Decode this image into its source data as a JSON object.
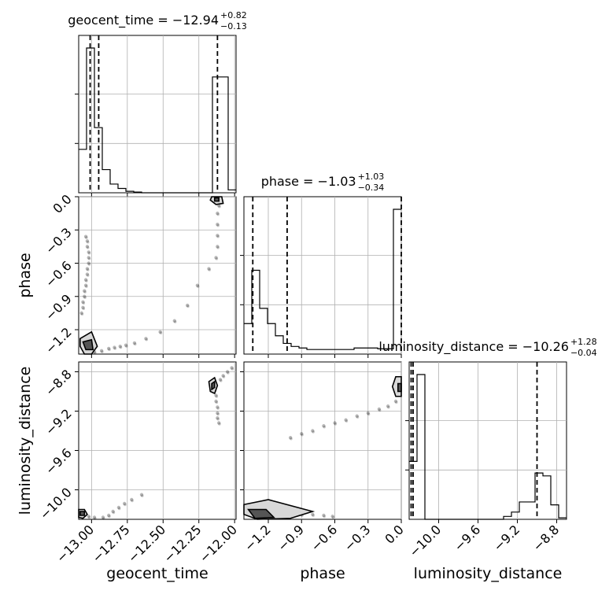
{
  "chart_data": {
    "type": "corner",
    "parameters": [
      {
        "name": "geocent_time",
        "axis_label": "geocent_time",
        "title_name": "geocent_time",
        "median": "−12.94",
        "plus": "+0.82",
        "minus": "−0.13",
        "range": [
          -13.09,
          -11.99
        ],
        "ticks": [
          -13.0,
          -12.75,
          -12.5,
          -12.25,
          -12.0
        ],
        "tick_labels": [
          "−13.00",
          "−12.75",
          "−12.50",
          "−12.25",
          "−12.00"
        ],
        "quantiles": [
          -13.01,
          -12.95,
          -12.12
        ],
        "hist": {
          "edges": [
            -13.09,
            -13.035,
            -12.98,
            -12.925,
            -12.87,
            -12.815,
            -12.76,
            -12.705,
            -12.65,
            -12.595,
            -12.54,
            -12.485,
            -12.43,
            -12.375,
            -12.32,
            -12.265,
            -12.21,
            -12.155,
            -12.1,
            -12.045,
            -11.99
          ],
          "counts": [
            0.3,
            1.0,
            0.45,
            0.16,
            0.06,
            0.03,
            0.01,
            0.005,
            0,
            0,
            0,
            0,
            0,
            0,
            0,
            0,
            0,
            0.8,
            0.8,
            0.02
          ]
        }
      },
      {
        "name": "phase",
        "axis_label": "phase",
        "title_name": "phase",
        "median": "−1.03",
        "plus": "+1.03",
        "minus": "−0.34",
        "range": [
          -1.42,
          0.0
        ],
        "ticks": [
          -1.2,
          -0.9,
          -0.6,
          -0.3,
          0.0
        ],
        "tick_labels": [
          "−1.2",
          "−0.9",
          "−0.6",
          "−0.3",
          "0.0"
        ],
        "quantiles": [
          -1.34,
          -1.03,
          0.0
        ],
        "hist": {
          "edges": [
            -1.42,
            -1.349,
            -1.278,
            -1.207,
            -1.136,
            -1.065,
            -0.994,
            -0.923,
            -0.852,
            -0.781,
            -0.71,
            -0.639,
            -0.568,
            -0.497,
            -0.426,
            -0.355,
            -0.284,
            -0.213,
            -0.142,
            -0.071,
            0.0
          ],
          "counts": [
            0.2,
            0.55,
            0.3,
            0.2,
            0.12,
            0.07,
            0.05,
            0.04,
            0.03,
            0.03,
            0.03,
            0.03,
            0.03,
            0.03,
            0.04,
            0.04,
            0.04,
            0.035,
            0.035,
            0.95
          ]
        }
      },
      {
        "name": "luminosity_distance",
        "axis_label": "luminosity_distance",
        "title_name": "luminosity_distance",
        "median": "−10.26",
        "plus": "+1.28",
        "minus": "−0.04",
        "range": [
          -10.3,
          -8.7
        ],
        "ticks": [
          -10.0,
          -9.6,
          -9.2,
          -8.8
        ],
        "tick_labels": [
          "−10.0",
          "−9.6",
          "−9.2",
          "−8.8"
        ],
        "quantiles": [
          -10.28,
          -10.26,
          -9.0
        ],
        "hist": {
          "edges": [
            -10.3,
            -10.22,
            -10.14,
            -10.06,
            -9.98,
            -9.9,
            -9.82,
            -9.74,
            -9.66,
            -9.58,
            -9.5,
            -9.42,
            -9.34,
            -9.26,
            -9.18,
            -9.1,
            -9.02,
            -8.94,
            -8.86,
            -8.78,
            -8.7
          ],
          "counts": [
            0.4,
            1.0,
            0,
            0,
            0,
            0,
            0,
            0,
            0,
            0,
            0,
            0,
            0.02,
            0.05,
            0.12,
            0.12,
            0.32,
            0.3,
            0.1,
            0.01
          ]
        }
      }
    ],
    "scatter_pairs": [
      {
        "x_param": "geocent_time",
        "y_param": "phase",
        "points": [
          [
            -13.04,
            -0.36
          ],
          [
            -13.03,
            -0.4
          ],
          [
            -13.03,
            -0.45
          ],
          [
            -13.02,
            -0.5
          ],
          [
            -13.02,
            -0.55
          ],
          [
            -13.02,
            -0.6
          ],
          [
            -13.03,
            -0.65
          ],
          [
            -13.03,
            -0.7
          ],
          [
            -13.04,
            -0.75
          ],
          [
            -13.04,
            -0.8
          ],
          [
            -13.05,
            -0.85
          ],
          [
            -13.05,
            -0.9
          ],
          [
            -13.06,
            -0.95
          ],
          [
            -13.06,
            -1.0
          ],
          [
            -13.07,
            -1.05
          ],
          [
            -13.02,
            -1.4
          ],
          [
            -12.98,
            -1.4
          ],
          [
            -12.93,
            -1.39
          ],
          [
            -12.88,
            -1.37
          ],
          [
            -12.84,
            -1.36
          ],
          [
            -12.8,
            -1.35
          ],
          [
            -12.76,
            -1.34
          ],
          [
            -12.7,
            -1.32
          ],
          [
            -12.62,
            -1.28
          ],
          [
            -12.52,
            -1.22
          ],
          [
            -12.42,
            -1.12
          ],
          [
            -12.33,
            -0.98
          ],
          [
            -12.26,
            -0.8
          ],
          [
            -12.18,
            -0.65
          ],
          [
            -12.13,
            -0.55
          ],
          [
            -12.12,
            -0.45
          ],
          [
            -12.12,
            -0.35
          ],
          [
            -12.12,
            -0.25
          ],
          [
            -12.12,
            -0.15
          ],
          [
            -12.11,
            -0.08
          ],
          [
            -12.11,
            -0.02
          ]
        ],
        "contours": [
          {
            "level": "outer",
            "x": [
              -13.08,
              -13.0,
              -12.96,
              -13.0,
              -13.05,
              -13.08
            ],
            "y": [
              -1.28,
              -1.22,
              -1.35,
              -1.42,
              -1.42,
              -1.35
            ]
          },
          {
            "level": "inner",
            "x": [
              -13.06,
              -13.0,
              -12.99,
              -13.04
            ],
            "y": [
              -1.31,
              -1.29,
              -1.38,
              -1.38
            ]
          },
          {
            "level": "outer",
            "x": [
              -12.16,
              -12.09,
              -12.08,
              -12.13,
              -12.17
            ],
            "y": [
              0.0,
              0.0,
              -0.06,
              -0.07,
              -0.03
            ]
          },
          {
            "level": "inner",
            "x": [
              -12.14,
              -12.11,
              -12.11,
              -12.14
            ],
            "y": [
              -0.01,
              -0.01,
              -0.04,
              -0.04
            ]
          }
        ]
      },
      {
        "x_param": "geocent_time",
        "y_param": "luminosity_distance",
        "points": [
          [
            -13.05,
            -10.25
          ],
          [
            -13.02,
            -10.27
          ],
          [
            -12.98,
            -10.28
          ],
          [
            -12.92,
            -10.28
          ],
          [
            -12.88,
            -10.26
          ],
          [
            -12.85,
            -10.22
          ],
          [
            -12.81,
            -10.18
          ],
          [
            -12.77,
            -10.14
          ],
          [
            -12.72,
            -10.1
          ],
          [
            -12.65,
            -10.05
          ],
          [
            -12.15,
            -8.92
          ],
          [
            -12.14,
            -8.98
          ],
          [
            -12.13,
            -9.04
          ],
          [
            -12.13,
            -9.1
          ],
          [
            -12.12,
            -9.16
          ],
          [
            -12.12,
            -9.22
          ],
          [
            -12.12,
            -9.27
          ],
          [
            -12.11,
            -9.32
          ],
          [
            -12.1,
            -8.88
          ],
          [
            -12.08,
            -8.84
          ],
          [
            -12.05,
            -8.8
          ],
          [
            -12.02,
            -8.76
          ]
        ],
        "contours": [
          {
            "level": "outer",
            "x": [
              -13.09,
              -13.05,
              -13.03,
              -13.06,
              -13.09
            ],
            "y": [
              -10.2,
              -10.2,
              -10.25,
              -10.29,
              -10.28
            ]
          },
          {
            "level": "inner",
            "x": [
              -13.08,
              -13.05,
              -13.05,
              -13.08
            ],
            "y": [
              -10.22,
              -10.22,
              -10.26,
              -10.26
            ]
          },
          {
            "level": "outer",
            "x": [
              -12.18,
              -12.14,
              -12.12,
              -12.14,
              -12.17
            ],
            "y": [
              -8.9,
              -8.86,
              -8.94,
              -9.02,
              -9.0
            ]
          },
          {
            "level": "inner",
            "x": [
              -12.16,
              -12.14,
              -12.14,
              -12.16
            ],
            "y": [
              -8.92,
              -8.9,
              -8.96,
              -8.98
            ]
          }
        ]
      },
      {
        "x_param": "phase",
        "y_param": "luminosity_distance",
        "points": [
          [
            -1.3,
            -10.27
          ],
          [
            -1.2,
            -10.26
          ],
          [
            -1.1,
            -10.25
          ],
          [
            -1.0,
            -10.25
          ],
          [
            -0.9,
            -10.25
          ],
          [
            -0.8,
            -10.25
          ],
          [
            -0.7,
            -10.26
          ],
          [
            -0.62,
            -10.27
          ],
          [
            -1.0,
            -9.47
          ],
          [
            -0.9,
            -9.43
          ],
          [
            -0.8,
            -9.4
          ],
          [
            -0.7,
            -9.35
          ],
          [
            -0.6,
            -9.32
          ],
          [
            -0.5,
            -9.29
          ],
          [
            -0.4,
            -9.25
          ],
          [
            -0.3,
            -9.22
          ],
          [
            -0.2,
            -9.18
          ],
          [
            -0.12,
            -9.15
          ],
          [
            -0.05,
            -9.1
          ]
        ],
        "contours": [
          {
            "level": "outer",
            "x": [
              -1.42,
              -1.2,
              -0.8,
              -1.0,
              -1.3,
              -1.42
            ],
            "y": [
              -10.15,
              -10.1,
              -10.22,
              -10.29,
              -10.3,
              -10.25
            ]
          },
          {
            "level": "inner",
            "x": [
              -1.38,
              -1.22,
              -1.15,
              -1.32
            ],
            "y": [
              -10.2,
              -10.2,
              -10.28,
              -10.29
            ]
          },
          {
            "level": "outer",
            "x": [
              -0.05,
              0.0,
              0.0,
              -0.05,
              -0.08
            ],
            "y": [
              -8.85,
              -8.85,
              -9.05,
              -9.05,
              -8.95
            ]
          },
          {
            "level": "inner",
            "x": [
              -0.03,
              0.0,
              0.0,
              -0.03
            ],
            "y": [
              -8.92,
              -8.92,
              -9.0,
              -9.0
            ]
          }
        ]
      }
    ],
    "grid": true
  }
}
